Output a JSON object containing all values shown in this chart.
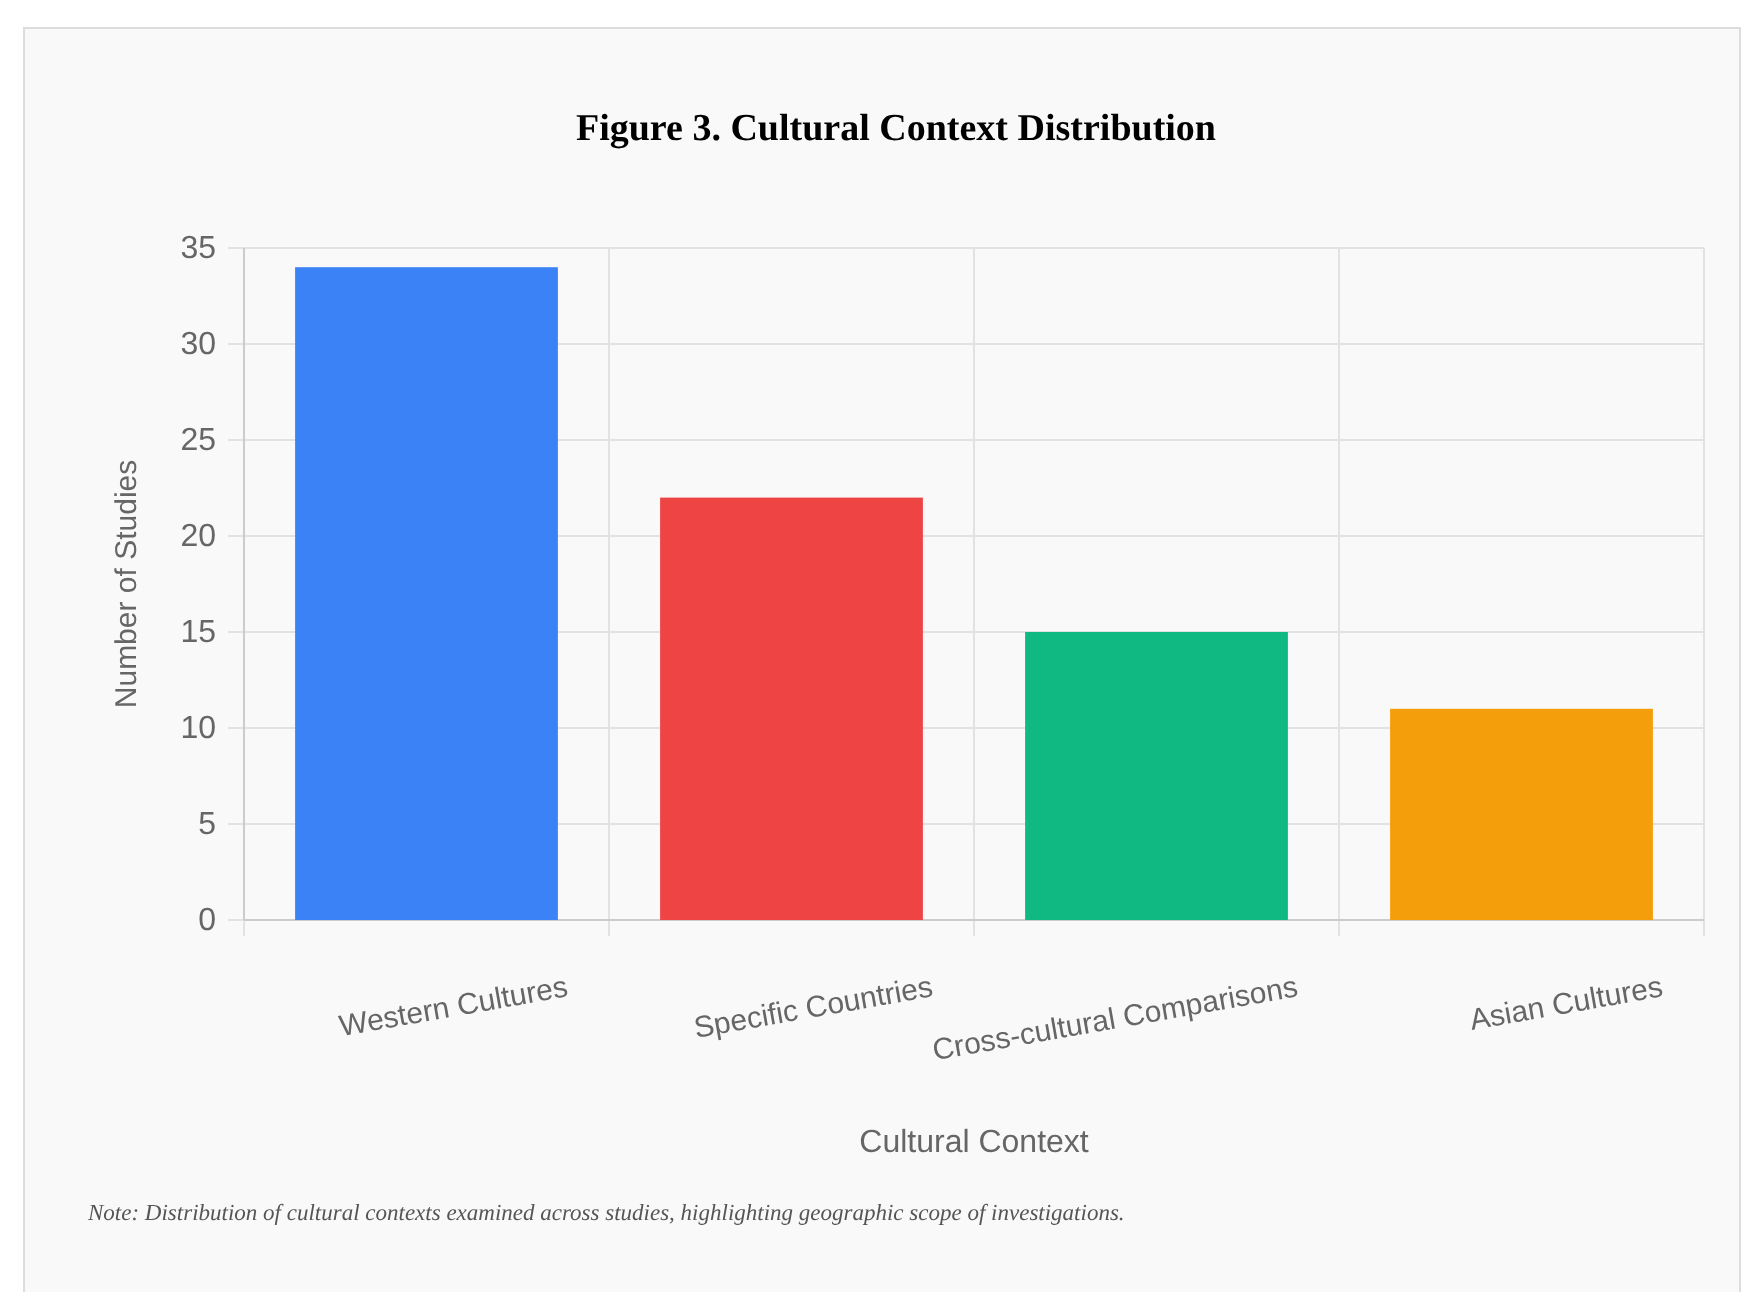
{
  "chart_data": {
    "type": "bar",
    "title": "Figure 3. Cultural Context Distribution",
    "xlabel": "Cultural Context",
    "ylabel": "Number of Studies",
    "categories": [
      "Western Cultures",
      "Specific Countries",
      "Cross-cultural Comparisons",
      "Asian Cultures"
    ],
    "values": [
      34,
      22,
      15,
      11
    ],
    "colors": [
      "#3b82f6",
      "#ef4444",
      "#10b981",
      "#f59e0b"
    ],
    "ylim": [
      0,
      35
    ],
    "yticks": [
      0,
      5,
      10,
      15,
      20,
      25,
      30,
      35
    ],
    "grid": true,
    "annotations": [
      "Note: Distribution of cultural contexts examined across studies, highlighting geographic scope of investigations."
    ]
  }
}
